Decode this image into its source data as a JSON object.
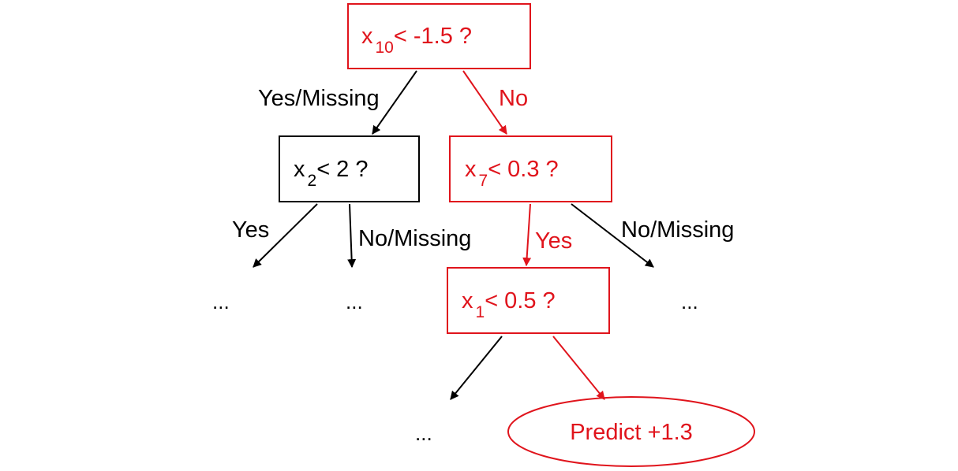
{
  "colors": {
    "highlight": "#e0141c",
    "default": "#000000",
    "background": "#ffffff"
  },
  "nodes": {
    "root": {
      "var": "x",
      "index": "10",
      "condition": "< -1.5 ?"
    },
    "left": {
      "var": "x",
      "index": "2",
      "condition": "< 2 ?"
    },
    "right": {
      "var": "x",
      "index": "7",
      "condition": "< 0.3 ?"
    },
    "deep": {
      "var": "x",
      "index": "1",
      "condition": "< 0.5 ?"
    },
    "leaf": {
      "label": "Predict +1.3"
    }
  },
  "edges": {
    "root_left": {
      "label": "Yes/Missing"
    },
    "root_right": {
      "label": "No"
    },
    "left_yes": {
      "label": "Yes"
    },
    "left_no": {
      "label": "No/Missing"
    },
    "right_yes": {
      "label": "Yes"
    },
    "right_no": {
      "label": "No/Missing"
    }
  },
  "ellipses": {
    "a": "...",
    "b": "...",
    "c": "...",
    "d": "..."
  }
}
